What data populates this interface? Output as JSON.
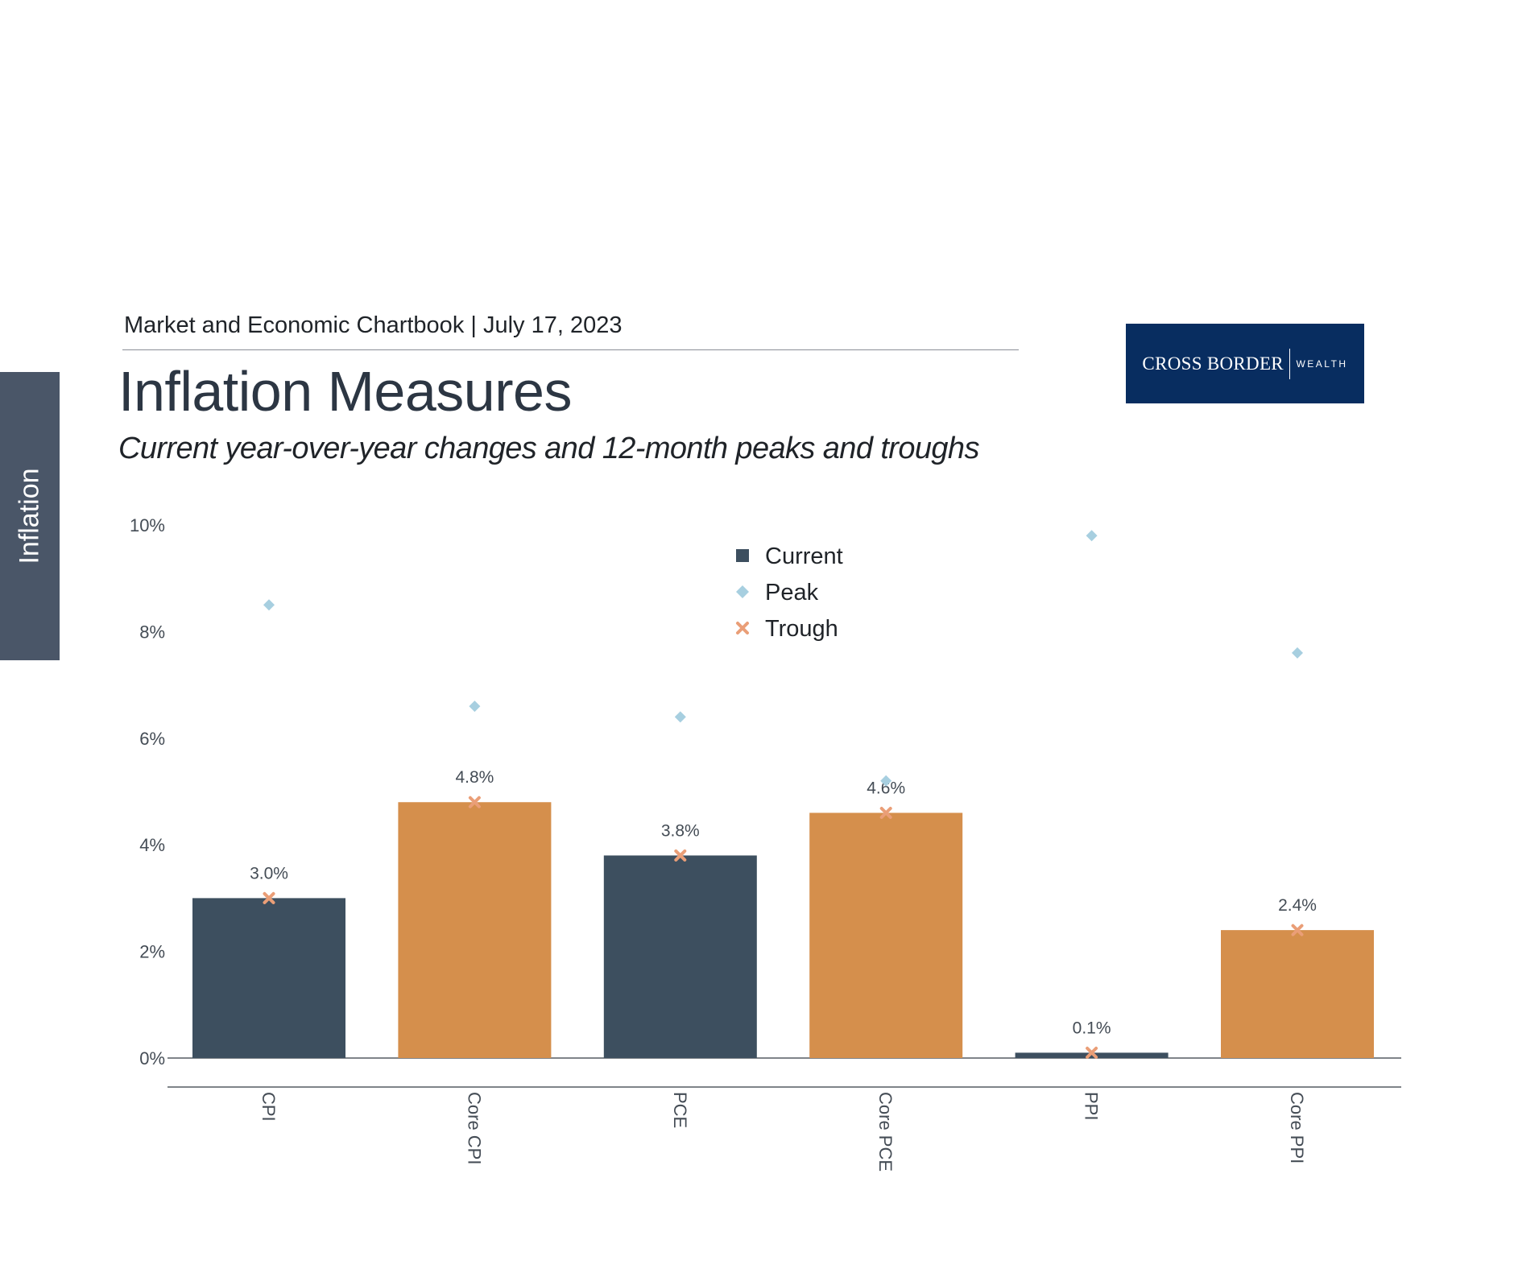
{
  "side_tab": {
    "label": "Inflation"
  },
  "header": {
    "chartbook": "Market and Economic Chartbook | July 17, 2023",
    "title": "Inflation Measures",
    "subtitle": "Current year-over-year changes and 12-month peaks and troughs"
  },
  "logo": {
    "main": "CROSS BORDER",
    "sub": "WEALTH"
  },
  "colors": {
    "current_dark": "#3d4f5f",
    "current_orange": "#d58f4c",
    "peak": "#a7cfe0",
    "trough": "#ea9e77",
    "axis": "#555b62"
  },
  "chart_data": {
    "type": "bar",
    "categories": [
      "CPI",
      "Core CPI",
      "PCE",
      "Core PCE",
      "PPI",
      "Core PPI"
    ],
    "series": [
      {
        "name": "Current",
        "marker": "square",
        "values": [
          3.0,
          4.8,
          3.8,
          4.6,
          0.1,
          2.4
        ]
      },
      {
        "name": "Peak",
        "marker": "diamond",
        "values": [
          8.5,
          6.6,
          6.4,
          5.2,
          9.8,
          7.6
        ]
      },
      {
        "name": "Trough",
        "marker": "x",
        "values": [
          3.0,
          4.8,
          3.8,
          4.6,
          0.1,
          2.4
        ]
      }
    ],
    "bar_colors": [
      "#3d4f5f",
      "#d58f4c",
      "#3d4f5f",
      "#d58f4c",
      "#3d4f5f",
      "#d58f4c"
    ],
    "data_labels": [
      "3.0%",
      "4.8%",
      "3.8%",
      "4.6%",
      "0.1%",
      "2.4%"
    ],
    "y_ticks": [
      "0%",
      "2%",
      "4%",
      "6%",
      "8%",
      "10%"
    ],
    "y_tick_values": [
      0,
      2,
      4,
      6,
      8,
      10
    ],
    "ylim": [
      0,
      10
    ],
    "xlabel": "",
    "ylabel": "",
    "grid": false,
    "legend_position": "top-center"
  }
}
